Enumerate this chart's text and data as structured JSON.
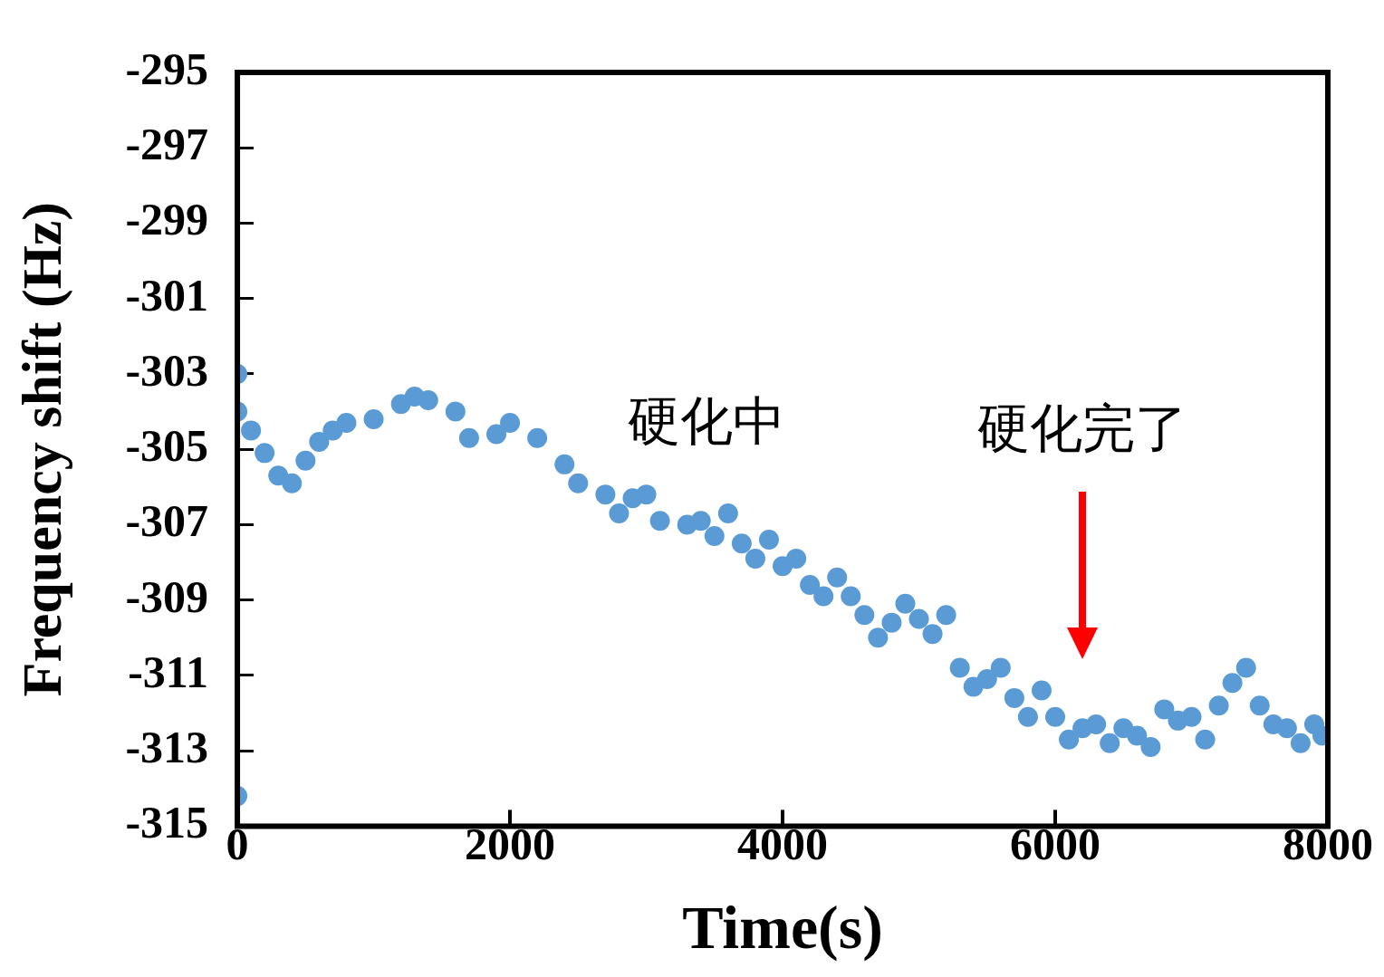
{
  "chart_data": {
    "type": "scatter",
    "xlabel": "Time(s)",
    "ylabel": "Frequency shift (Hz)",
    "xlim": [
      0,
      8000
    ],
    "xticks": [
      0,
      2000,
      4000,
      6000,
      8000
    ],
    "ylim": [
      -315,
      -295
    ],
    "yticks": [
      -295,
      -297,
      -299,
      -301,
      -303,
      -305,
      -307,
      -309,
      -311,
      -313,
      -315
    ],
    "grid": false,
    "marker": "circle",
    "annotations": [
      "硬化中",
      "硬化完了"
    ],
    "series": [
      {
        "color": "#5b9bd5",
        "x": [
          0,
          0,
          0,
          100,
          200,
          300,
          400,
          500,
          600,
          700,
          800,
          1000,
          1200,
          1300,
          1400,
          1600,
          1700,
          1900,
          2000,
          2200,
          2400,
          2500,
          2700,
          2800,
          2900,
          3000,
          3100,
          3300,
          3400,
          3500,
          3600,
          3700,
          3800,
          3900,
          4000,
          4100,
          4200,
          4300,
          4400,
          4500,
          4600,
          4700,
          4800,
          4900,
          5000,
          5100,
          5200,
          5300,
          5400,
          5500,
          5600,
          5700,
          5800,
          5900,
          6000,
          6100,
          6200,
          6300,
          6400,
          6500,
          6600,
          6700,
          6800,
          6900,
          7000,
          7100,
          7200,
          7300,
          7400,
          7500,
          7600,
          7700,
          7800,
          7900,
          7960
        ],
        "values": [
          -314.2,
          -303.0,
          -304.0,
          -304.5,
          -305.1,
          -305.7,
          -305.9,
          -305.3,
          -304.8,
          -304.5,
          -304.3,
          -304.2,
          -303.8,
          -303.6,
          -303.7,
          -304.0,
          -304.7,
          -304.6,
          -304.3,
          -304.7,
          -305.4,
          -305.9,
          -306.2,
          -306.7,
          -306.3,
          -306.2,
          -306.9,
          -307.0,
          -306.9,
          -307.3,
          -306.7,
          -307.5,
          -307.9,
          -307.4,
          -308.1,
          -307.9,
          -308.6,
          -308.9,
          -308.4,
          -308.9,
          -309.4,
          -310.0,
          -309.6,
          -309.1,
          -309.5,
          -309.9,
          -309.4,
          -310.8,
          -311.3,
          -311.1,
          -310.8,
          -311.6,
          -312.1,
          -311.4,
          -312.1,
          -312.7,
          -312.4,
          -312.3,
          -312.8,
          -312.4,
          -312.6,
          -312.9,
          -311.9,
          -312.2,
          -312.1,
          -312.7,
          -311.8,
          -311.2,
          -310.8,
          -311.8,
          -312.3,
          -312.4,
          -312.8,
          -312.3,
          -312.6
        ]
      }
    ]
  }
}
